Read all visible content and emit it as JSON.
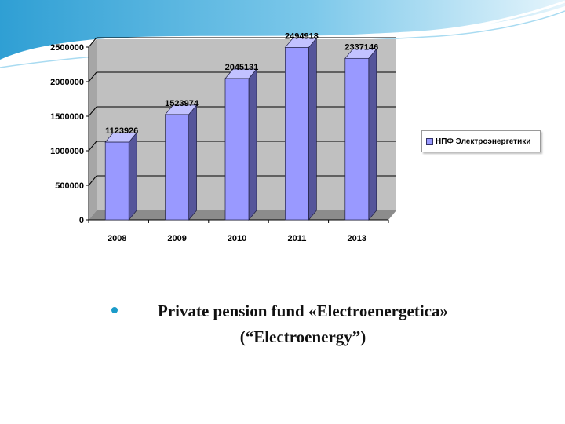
{
  "chart_data": {
    "type": "bar",
    "categories": [
      "2008",
      "2009",
      "2010",
      "2011",
      "2013"
    ],
    "series": [
      {
        "name": "НПФ Электроэнергетики",
        "values": [
          1123926,
          1523974,
          2045131,
          2494918,
          2337146
        ]
      }
    ],
    "data_labels": [
      "1123926",
      "1523974",
      "2045131",
      "2494918",
      "2337146"
    ],
    "y_ticks": [
      0,
      500000,
      1000000,
      1500000,
      2000000,
      2500000
    ],
    "ylim": [
      0,
      2500000
    ],
    "grid": true,
    "legend_position": "right",
    "colors": {
      "bar_front": "#9999ff",
      "bar_side": "#55559a",
      "bar_top": "#c2c2ff",
      "plot_background": "#c0c0c0"
    }
  },
  "caption": {
    "line1": "Private pension fund «Electroenergetica»",
    "line2": "(“Electroenergy”)"
  },
  "colors": {
    "bullet": "#1b9bc9",
    "header_wave": "#3aa7d8"
  }
}
